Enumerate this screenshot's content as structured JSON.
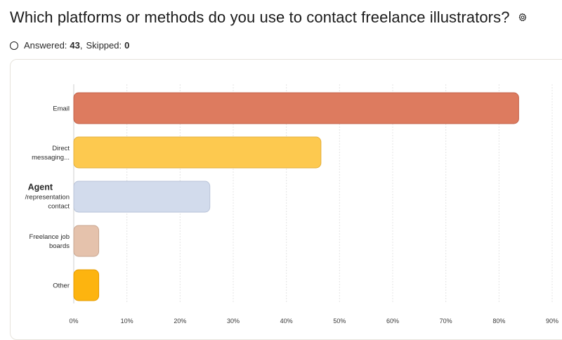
{
  "question": {
    "title": "Which platforms or methods do you use to contact freelance illustrators?"
  },
  "stats": {
    "answered_label": "Answered:",
    "answered_count": "43",
    "separator": ",",
    "skipped_label": "Skipped:",
    "skipped_count": "0"
  },
  "icons": {
    "settings": "gear-icon",
    "answered": "radio-circle-icon"
  },
  "chart_data": {
    "type": "bar",
    "orientation": "horizontal",
    "categories": [
      {
        "lines": [
          "Email"
        ],
        "emphasis": false
      },
      {
        "lines": [
          "Direct",
          "messaging..."
        ],
        "emphasis": false
      },
      {
        "lines": [
          "Agent",
          "/representation",
          "contact"
        ],
        "emphasis": true
      },
      {
        "lines": [
          "Freelance job",
          "boards"
        ],
        "emphasis": false
      },
      {
        "lines": [
          "Other"
        ],
        "emphasis": false
      }
    ],
    "values": [
      83.7,
      46.5,
      25.6,
      4.7,
      4.7
    ],
    "unit": "%",
    "colors": [
      "#dd7b5f",
      "#fdc94f",
      "#d2dbec",
      "#e5c2ac",
      "#fdb40f"
    ],
    "stroke_colors": [
      "#c2624a",
      "#e4b03c",
      "#b8c3d8",
      "#c9a690",
      "#e59b00"
    ],
    "xlim": [
      0,
      90
    ],
    "xticks": [
      "0%",
      "10%",
      "20%",
      "30%",
      "40%",
      "50%",
      "60%",
      "70%",
      "80%",
      "90%"
    ],
    "grid": true,
    "title": "",
    "xlabel": "",
    "ylabel": ""
  }
}
